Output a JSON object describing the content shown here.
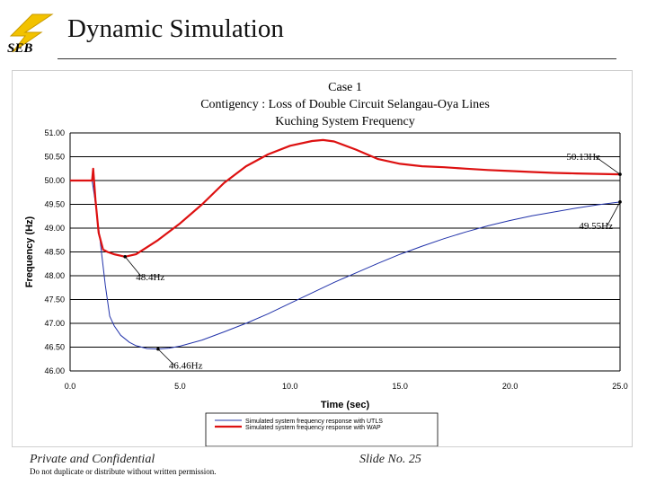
{
  "slide": {
    "title": "Dynamic Simulation",
    "logo_text": "SEB",
    "footer_left": "Private and Confidential",
    "footer_note": "Do not duplicate or distribute without written permission.",
    "footer_right": "Slide No. 25"
  },
  "colors": {
    "utls_series": "#2233aa",
    "wap_series": "#dd1111",
    "logo_bolt": "#f2c200",
    "grid": "#000000"
  },
  "chart_data": {
    "type": "line",
    "title_lines": [
      "Case 1",
      "Contigency : Loss of Double Circuit Selangau-Oya Lines",
      "Kuching System Frequency"
    ],
    "xlabel": "Time (sec)",
    "ylabel": "Frequency (Hz)",
    "xlim": [
      0,
      25
    ],
    "ylim": [
      46,
      51
    ],
    "x_ticks": [
      "0.0",
      "5.0",
      "10.0",
      "15.0",
      "20.0",
      "25.0"
    ],
    "y_ticks": [
      "46.00",
      "46.50",
      "47.00",
      "47.50",
      "48.00",
      "48.50",
      "49.00",
      "49.50",
      "50.00",
      "50.50",
      "51.00"
    ],
    "grid": "horizontal",
    "legend_position": "bottom",
    "series": [
      {
        "name": "Simulated system frequency response with UTLS",
        "color": "#2233aa",
        "x": [
          0,
          1.0,
          1.1,
          1.3,
          1.6,
          1.8,
          2.0,
          2.3,
          2.7,
          3.0,
          3.5,
          4.0,
          4.5,
          5.0,
          6.0,
          7.0,
          8.0,
          9.0,
          10.0,
          11.0,
          12.0,
          13.0,
          14.0,
          15.0,
          16.0,
          17.0,
          18.0,
          19.0,
          20.0,
          21.0,
          22.0,
          23.0,
          24.0,
          25.0
        ],
        "y": [
          50.0,
          50.0,
          49.7,
          49.0,
          47.8,
          47.15,
          46.95,
          46.75,
          46.6,
          46.53,
          46.47,
          46.46,
          46.48,
          46.52,
          46.65,
          46.82,
          47.0,
          47.2,
          47.42,
          47.64,
          47.86,
          48.06,
          48.26,
          48.45,
          48.62,
          48.78,
          48.92,
          49.05,
          49.16,
          49.26,
          49.34,
          49.42,
          49.49,
          49.55
        ]
      },
      {
        "name": "Simulated system frequency response with WAP",
        "color": "#dd1111",
        "x": [
          0,
          1.0,
          1.05,
          1.15,
          1.3,
          1.5,
          1.7,
          2.0,
          2.5,
          3.0,
          3.5,
          4.0,
          5.0,
          6.0,
          7.0,
          8.0,
          9.0,
          10.0,
          11.0,
          11.5,
          12.0,
          13.0,
          14.0,
          15.0,
          16.0,
          17.0,
          18.0,
          19.0,
          20.0,
          21.0,
          22.0,
          23.0,
          24.0,
          25.0
        ],
        "y": [
          50.0,
          50.0,
          50.25,
          49.6,
          48.9,
          48.55,
          48.5,
          48.45,
          48.4,
          48.45,
          48.6,
          48.75,
          49.1,
          49.5,
          49.95,
          50.3,
          50.55,
          50.73,
          50.83,
          50.85,
          50.82,
          50.65,
          50.45,
          50.35,
          50.3,
          50.28,
          50.25,
          50.22,
          50.2,
          50.18,
          50.16,
          50.15,
          50.14,
          50.13
        ]
      }
    ],
    "annotations": [
      {
        "text": "50.13Hz",
        "x": 25.0,
        "y": 50.13,
        "series": "wap"
      },
      {
        "text": "49.55Hz",
        "x": 25.0,
        "y": 49.55,
        "series": "utls"
      },
      {
        "text": "48.4Hz",
        "x": 2.5,
        "y": 48.4,
        "series": "wap"
      },
      {
        "text": "46.46Hz",
        "x": 4.0,
        "y": 46.46,
        "series": "utls"
      }
    ]
  }
}
